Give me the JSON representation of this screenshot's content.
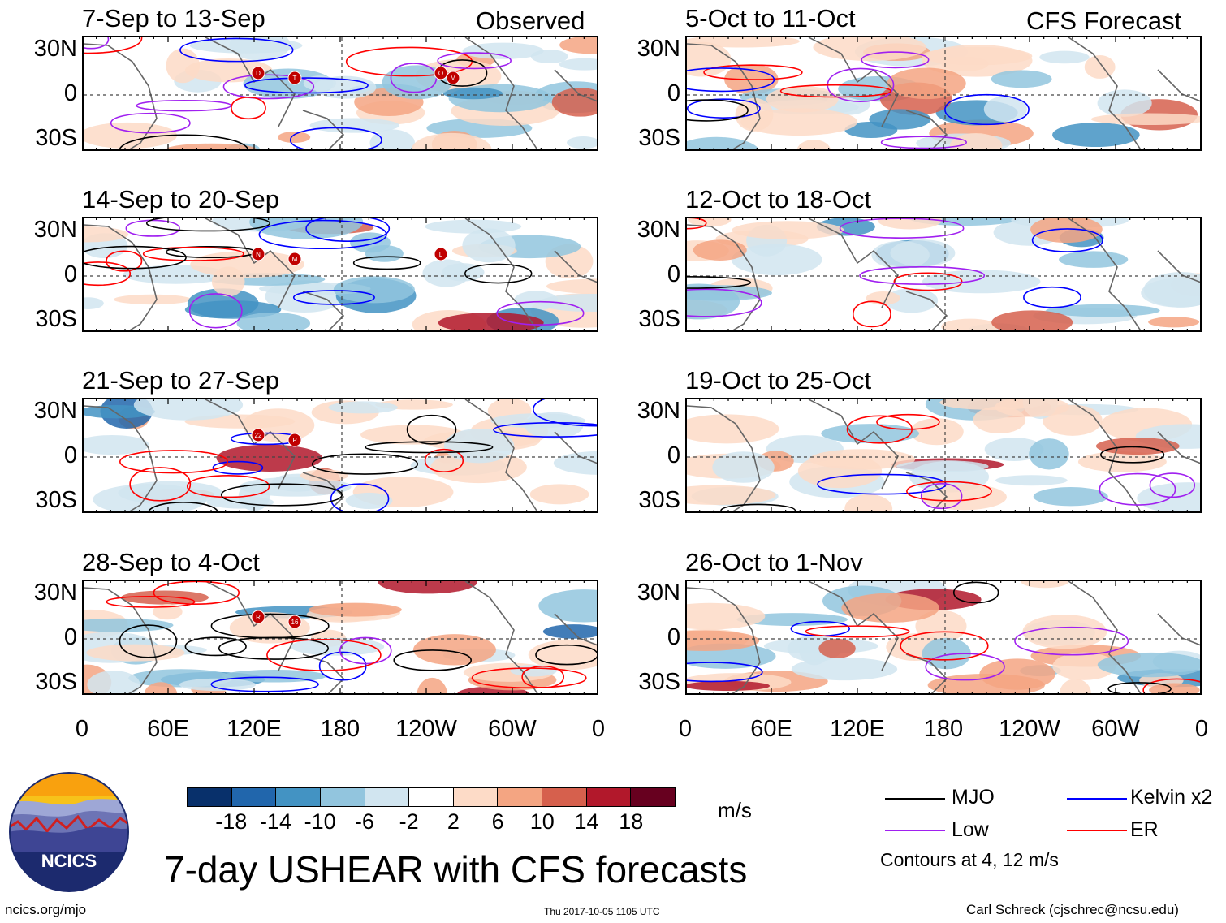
{
  "header": {
    "observed_label": "Observed",
    "forecast_label": "CFS Forecast"
  },
  "chart_data": {
    "type": "heatmap",
    "variable": "7-day USHEAR",
    "units": "m/s",
    "lat_labels": [
      "30N",
      "0",
      "30S"
    ],
    "lon_labels": [
      "0",
      "60E",
      "120E",
      "180",
      "120W",
      "60W",
      "0"
    ],
    "panels": [
      {
        "title": "7-Sep to 13-Sep",
        "column": "observed",
        "storms": [
          "D",
          "T",
          "O",
          "M"
        ]
      },
      {
        "title": "14-Sep to 20-Sep",
        "column": "observed",
        "storms": [
          "N",
          "M",
          "L"
        ]
      },
      {
        "title": "21-Sep to 27-Sep",
        "column": "observed",
        "storms": [
          "22",
          "P"
        ]
      },
      {
        "title": "28-Sep to 4-Oct",
        "column": "observed",
        "storms": [
          "R",
          "16"
        ]
      },
      {
        "title": "5-Oct to 11-Oct",
        "column": "forecast",
        "storms": []
      },
      {
        "title": "12-Oct to 18-Oct",
        "column": "forecast",
        "storms": []
      },
      {
        "title": "19-Oct to 25-Oct",
        "column": "forecast",
        "storms": []
      },
      {
        "title": "26-Oct to 1-Nov",
        "column": "forecast",
        "storms": []
      }
    ],
    "colorbar": {
      "colors": [
        "#08306b",
        "#2166ac",
        "#4393c3",
        "#92c5de",
        "#d1e5f0",
        "#ffffff",
        "#fddbc7",
        "#f4a582",
        "#d6604d",
        "#b2182b",
        "#67001f"
      ],
      "tick_labels": [
        "-18",
        "-14",
        "-10",
        "-6",
        "-2",
        "2",
        "6",
        "10",
        "14",
        "18"
      ]
    },
    "legend": [
      {
        "label": "MJO",
        "color": "#000000"
      },
      {
        "label": "Kelvin x2",
        "color": "#0000ff"
      },
      {
        "label": "Low",
        "color": "#a020f0"
      },
      {
        "label": "ER",
        "color": "#ff0000"
      }
    ],
    "contour_note": "Contours at 4, 12 m/s"
  },
  "footer": {
    "logo_text": "NCICS",
    "main_title": "7-day USHEAR with CFS forecasts",
    "url": "ncics.org/mjo",
    "timestamp": "Thu 2017-10-05 1105 UTC",
    "author": "Carl Schreck (cjschrec@ncsu.edu)"
  }
}
